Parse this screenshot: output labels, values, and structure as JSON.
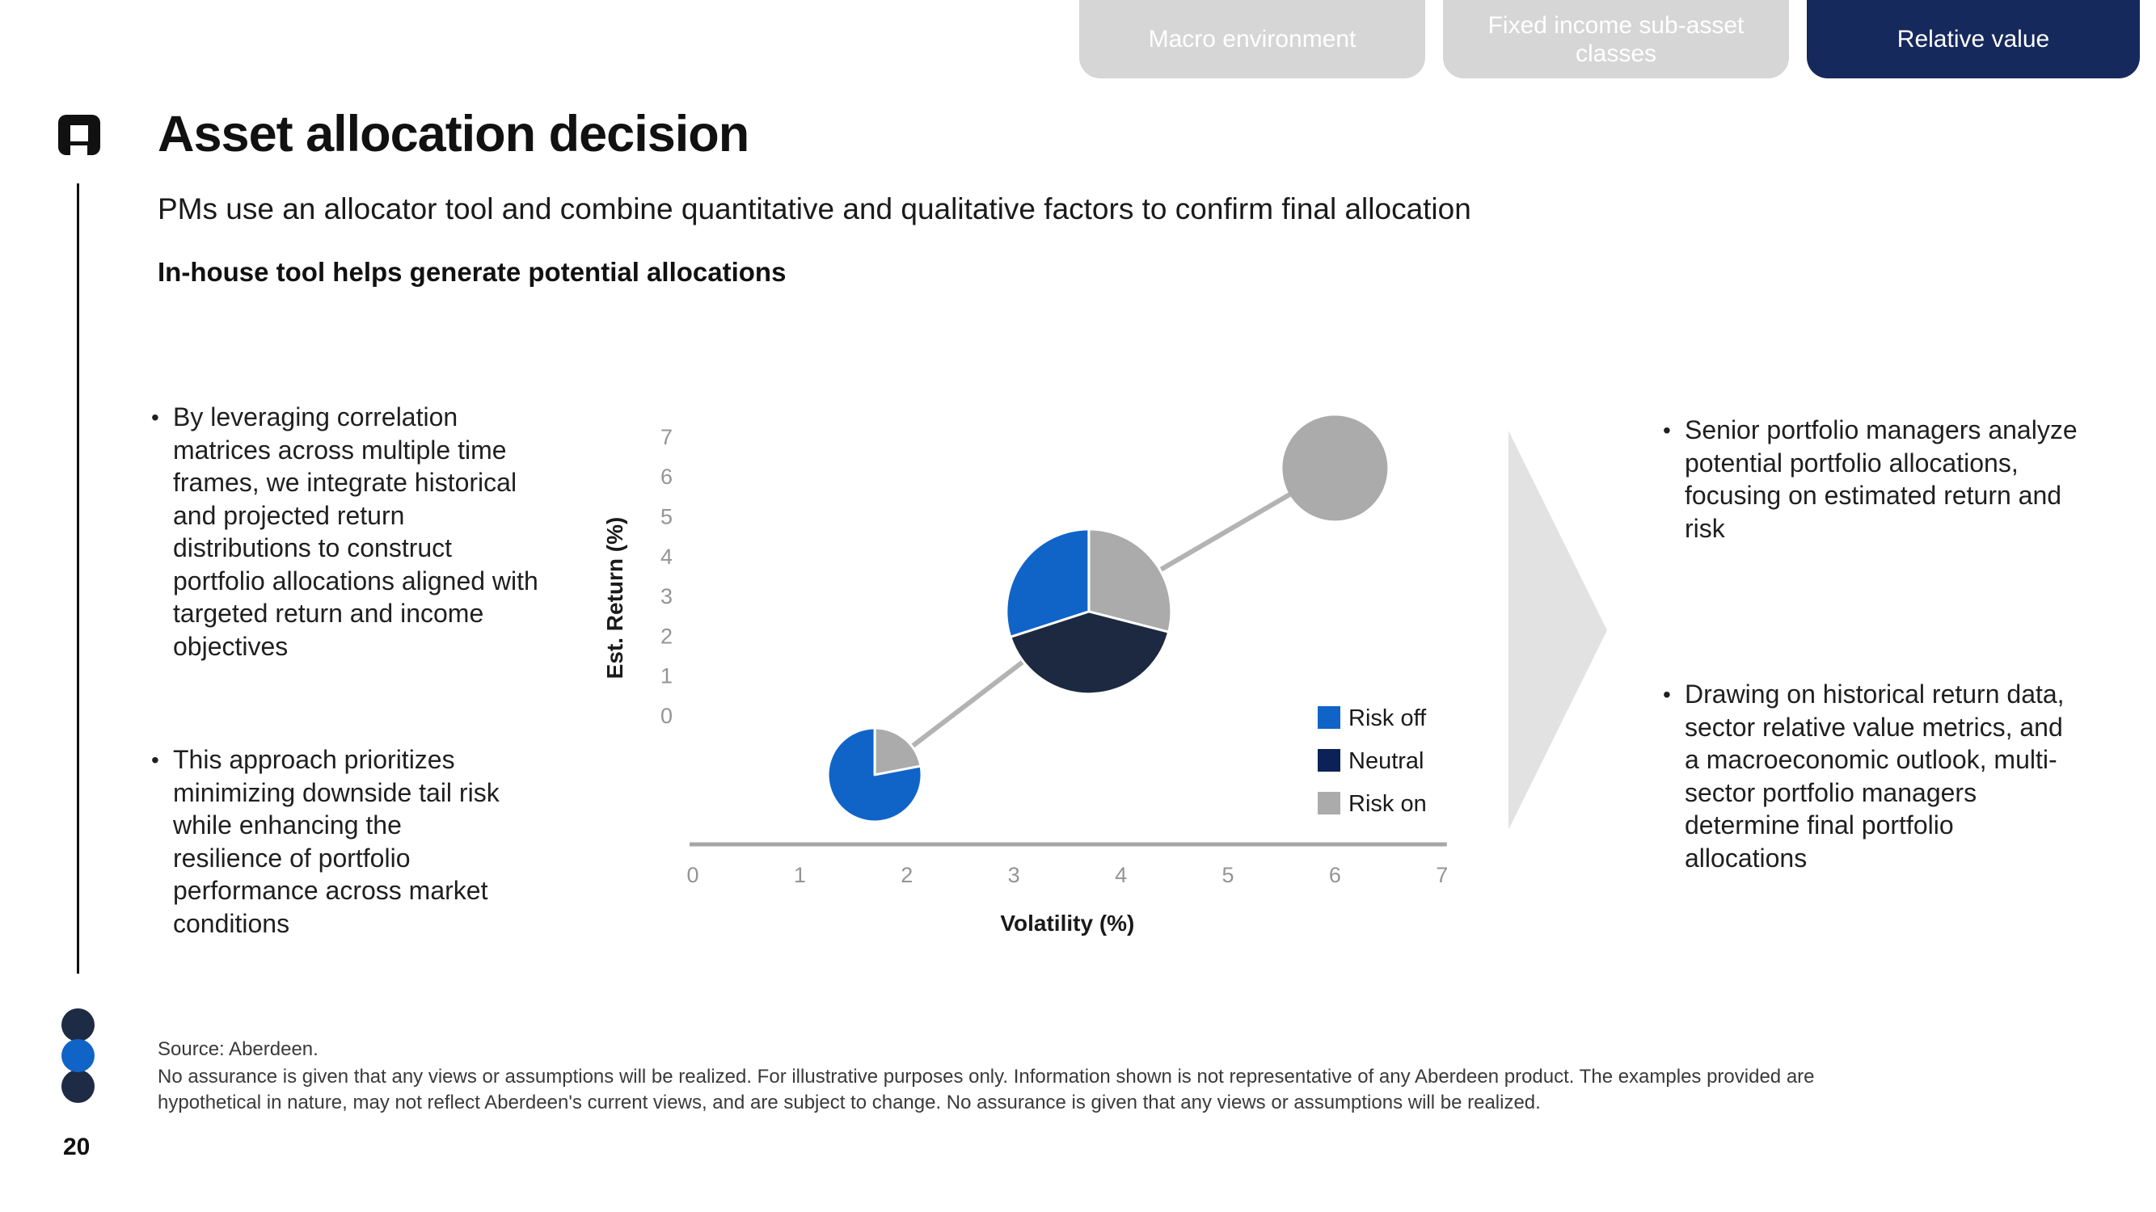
{
  "tabs": [
    {
      "label": "Macro environment",
      "active": false
    },
    {
      "label": "Fixed income sub-asset\nclasses",
      "active": false
    },
    {
      "label": "Relative value",
      "active": true
    }
  ],
  "header": {
    "title": "Asset allocation decision",
    "subtitle": "PMs use an allocator tool and combine quantitative and qualitative factors to confirm final allocation",
    "section_heading": "In-house tool helps generate potential allocations"
  },
  "left_bullets": [
    "By leveraging correlation\nmatrices across multiple time\nframes, we integrate historical\nand projected return\ndistributions to construct\nportfolio allocations aligned with\ntargeted return and income\nobjectives",
    "This approach prioritizes\nminimizing downside tail risk\nwhile enhancing the\nresilience of portfolio\nperformance across market\nconditions"
  ],
  "right_bullets": [
    "Senior portfolio managers analyze\npotential portfolio allocations,\nfocusing on estimated return and\nrisk",
    "Drawing on historical return data,\nsector relative value metrics, and\na macroeconomic outlook, multi-\nsector portfolio managers\ndetermine final portfolio\nallocations"
  ],
  "chart_data": {
    "type": "scatter",
    "subtype": "scatter-with-pie-markers",
    "xlabel": "Volatility (%)",
    "ylabel": "Est. Return (%)",
    "x_ticks": [
      0,
      1,
      2,
      3,
      4,
      5,
      6,
      7
    ],
    "y_ticks": [
      0,
      1,
      2,
      3,
      4,
      5,
      6,
      7
    ],
    "xlim": [
      0,
      7
    ],
    "ylim_labeled": [
      0,
      7
    ],
    "grid": false,
    "legend_position": "lower right",
    "axis_color": "#a6a6a6",
    "connector_color": "#b3b3b3",
    "legend": [
      {
        "label": "Risk off",
        "color": "#1064c8"
      },
      {
        "label": "Neutral",
        "color": "#0c2256"
      },
      {
        "label": "Risk on",
        "color": "#ababab"
      }
    ],
    "points": [
      {
        "name": "low-risk-allocation",
        "x": 1.7,
        "y": -1.5,
        "radius_px": 58,
        "slices": [
          {
            "label": "Risk on",
            "pct": 22,
            "color": "#ababab"
          },
          {
            "label": "Risk off",
            "pct": 78,
            "color": "#1064c8"
          }
        ]
      },
      {
        "name": "balanced-allocation",
        "x": 3.7,
        "y": 2.6,
        "radius_px": 102,
        "slices": [
          {
            "label": "Risk on",
            "pct": 29,
            "color": "#ababab"
          },
          {
            "label": "Neutral",
            "pct": 41,
            "color": "#1c2940"
          },
          {
            "label": "Risk off",
            "pct": 30,
            "color": "#1064c8"
          }
        ]
      },
      {
        "name": "high-risk-allocation",
        "x": 6.0,
        "y": 6.2,
        "radius_px": 65,
        "slices": [
          {
            "label": "Risk on",
            "pct": 100,
            "color": "#ababab"
          }
        ]
      }
    ]
  },
  "footer": {
    "source": "Source: Aberdeen.",
    "disclaimer": "No assurance is given that any views or assumptions will be realized. For illustrative purposes only. Information shown is not representative of any Aberdeen product. The examples provided are\nhypothetical in nature, may not reflect Aberdeen's current views, and are subject to change. No assurance is given that any views or assumptions will be realized.",
    "page_number": "20"
  },
  "colors": {
    "accent_blue": "#1064c8",
    "navy": "#16295c",
    "legend_neutral_navy": "#0c2256",
    "pie_neutral_navy": "#1c2940",
    "risk_on_gray": "#ababab",
    "tab_inactive_gray": "#d6d6d6",
    "arrow_gray": "#e2e2e2",
    "axis_gray": "#a6a6a6"
  }
}
